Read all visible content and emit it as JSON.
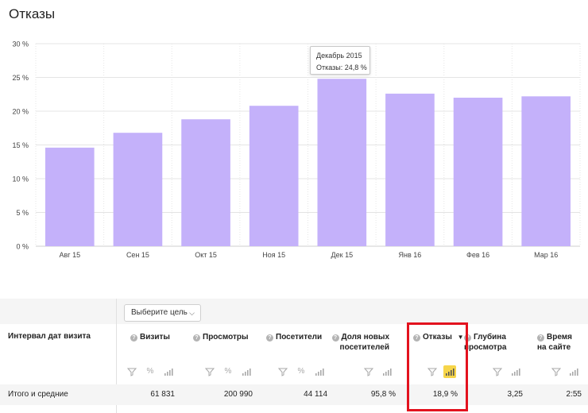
{
  "page": {
    "title": "Отказы"
  },
  "chart_data": {
    "type": "bar",
    "categories": [
      "Авг 15",
      "Сен 15",
      "Окт 15",
      "Ноя 15",
      "Дек 15",
      "Янв 16",
      "Фев 16",
      "Мар 16"
    ],
    "values": [
      14.6,
      16.8,
      18.8,
      20.8,
      24.8,
      22.6,
      22.0,
      22.2
    ],
    "ylim": [
      0,
      30
    ],
    "yticks": [
      "0 %",
      "5 %",
      "10 %",
      "15 %",
      "20 %",
      "25 %",
      "30 %"
    ],
    "grid": true,
    "color": "#c4b1fa",
    "tooltip": {
      "title": "Декабрь 2015",
      "value": "Отказы: 24,8 %"
    }
  },
  "goal_select": {
    "label": "Выберите цель",
    "chevron_icon": "chevron-down-icon"
  },
  "table": {
    "dimension_header": "Интервал дат визита",
    "columns": [
      {
        "key": "visits",
        "label": "Визиты"
      },
      {
        "key": "views",
        "label": "Просмотры"
      },
      {
        "key": "visitors",
        "label": "Посетители"
      },
      {
        "key": "new_share",
        "label": "Доля новых посетителей"
      },
      {
        "key": "bounce",
        "label": "Отказы",
        "sort": "▼"
      },
      {
        "key": "depth",
        "label": "Глубина просмотра"
      },
      {
        "key": "time",
        "label": "Время на сайте"
      }
    ],
    "total": {
      "label": "Итого и средние",
      "values": [
        "61 831",
        "200 990",
        "44 114",
        "95,8 %",
        "18,9 %",
        "3,25",
        "2:55"
      ]
    }
  },
  "colors": {
    "bar": "#c4b1fa",
    "highlight": "#e3121e",
    "active_chart_button": "#f6d54a",
    "grid": "#e4e4e4"
  }
}
